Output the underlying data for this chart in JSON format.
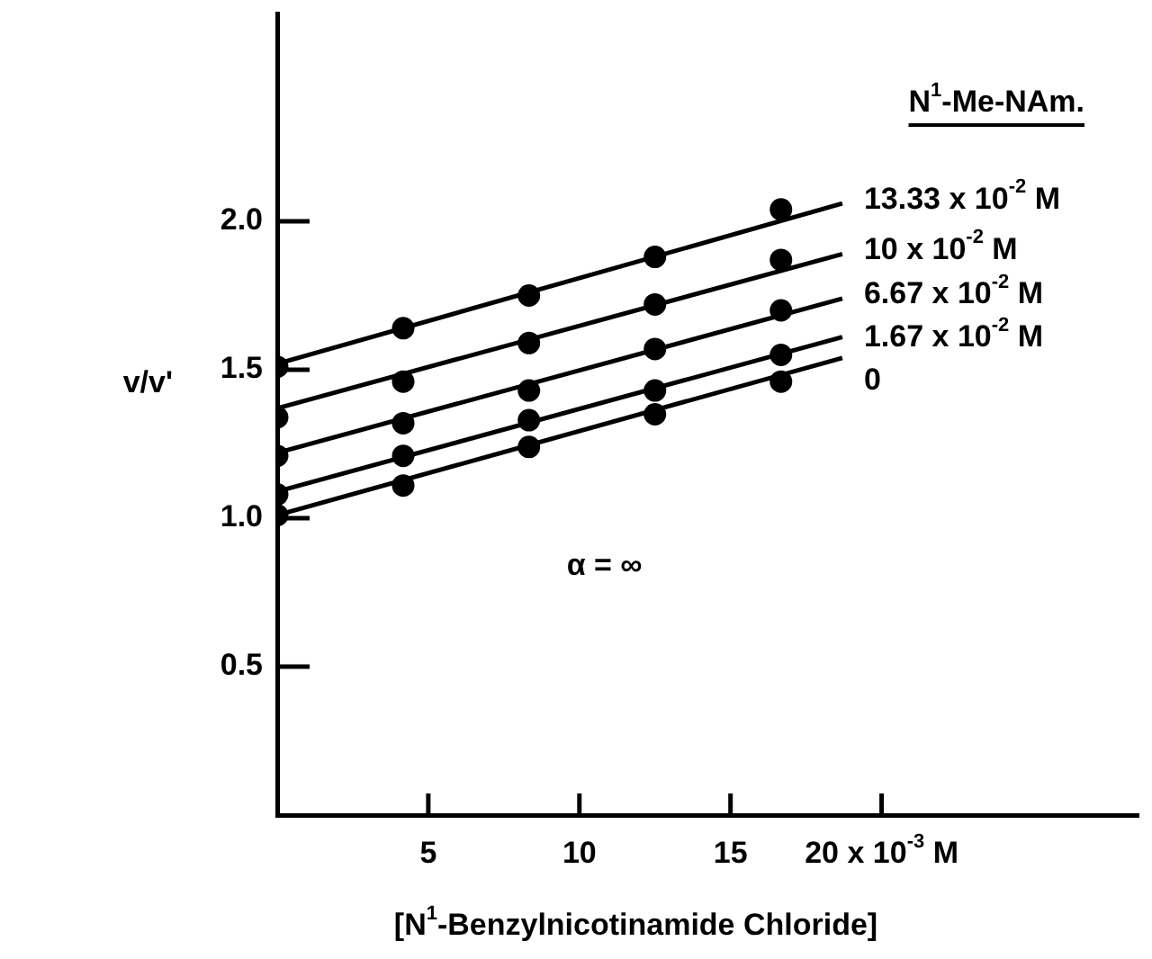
{
  "chart_data": {
    "type": "scatter",
    "xlabel": "[N$^{1}$-Benzylnicotinamide Chloride]",
    "ylabel": "v/v'",
    "legend_title": "N$^{1}$-Me-NAm.",
    "annotations": [
      "α = ∞"
    ],
    "xlim": [
      0,
      28.5
    ],
    "ylim": [
      0,
      2.7
    ],
    "xticks": [
      5,
      10,
      15,
      {
        "value": 20,
        "label": "20 x 10$^{-3}$ M"
      }
    ],
    "yticks": [
      0.5,
      {
        "value": 1,
        "label": "1.0"
      },
      1.5,
      {
        "value": 2,
        "label": "2.0"
      }
    ],
    "grid": false,
    "legend": false,
    "marker": "circle",
    "line_style": "solid",
    "x": [
      0,
      4.17,
      8.33,
      12.5,
      16.67,
      18.7
    ],
    "series": [
      {
        "color": "#000000",
        "values": [
          1.51,
          1.64,
          1.75,
          1.88,
          2.04,
          null
        ]
      },
      {
        "color": "#000000",
        "values": [
          1.34,
          1.46,
          1.59,
          1.72,
          1.87,
          null
        ]
      },
      {
        "color": "#000000",
        "values": [
          1.21,
          1.32,
          1.43,
          1.57,
          1.7,
          null
        ]
      },
      {
        "color": "#000000",
        "values": [
          1.08,
          1.21,
          1.33,
          1.43,
          1.55,
          null
        ]
      },
      {
        "color": "#000000",
        "values": [
          1.01,
          1.11,
          1.24,
          1.35,
          1.46,
          null
        ]
      },
      {
        "type": "line",
        "marker": "none",
        "name": "13.33 x 10$^{-2}$ M",
        "color": "#000000",
        "values": [
          1.52,
          null,
          null,
          null,
          null,
          2.06
        ]
      },
      {
        "type": "line",
        "marker": "none",
        "name": "10 x 10$^{-2}$ M",
        "color": "#000000",
        "values": [
          1.37,
          null,
          null,
          null,
          null,
          1.89
        ]
      },
      {
        "type": "line",
        "marker": "none",
        "name": "6.67 x 10$^{-2}$ M",
        "color": "#000000",
        "values": [
          1.22,
          null,
          null,
          null,
          null,
          1.74
        ]
      },
      {
        "type": "line",
        "marker": "none",
        "name": "1.67 x 10$^{-2}$ M",
        "color": "#000000",
        "values": [
          1.09,
          null,
          null,
          null,
          null,
          1.61
        ]
      },
      {
        "type": "line",
        "marker": "none",
        "name": "0",
        "color": "#000000",
        "values": [
          1.01,
          null,
          null,
          null,
          null,
          1.54
        ]
      }
    ]
  }
}
